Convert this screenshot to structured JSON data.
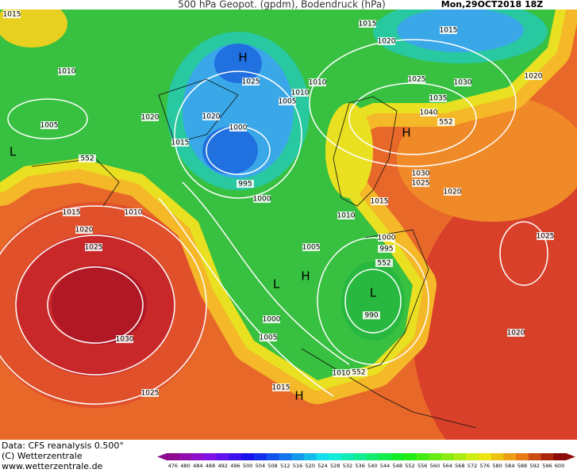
{
  "header": {
    "title": "500 hPa Geopot. (gpdm), Bodendruck (hPa)",
    "date": "Mon,29OCT2018 18Z"
  },
  "footer": {
    "lines": [
      "Data: CFS reanalysis 0.500°",
      "(C) Wetterzentrale",
      "www.wetterzentrale.de"
    ]
  },
  "colorbar": {
    "labels": [
      476,
      480,
      484,
      488,
      492,
      496,
      500,
      504,
      508,
      512,
      516,
      520,
      524,
      528,
      532,
      536,
      540,
      544,
      548,
      552,
      556,
      560,
      564,
      568,
      572,
      576,
      580,
      584,
      588,
      592,
      596,
      600
    ]
  },
  "map": {
    "labels": [
      "1015",
      "1015",
      "1020",
      "1015",
      "H",
      "1010",
      "1025",
      "1010",
      "1025",
      "1030",
      "1020",
      "1010",
      "1005",
      "1035",
      "1020",
      "1020",
      "1040",
      "552",
      "1005",
      "1000",
      "H",
      "1015",
      "L",
      "552",
      "1030",
      "1025",
      "995",
      "1020",
      "1000",
      "1015",
      "1015",
      "1010",
      "1010",
      "1020",
      "1000",
      "1025",
      "995",
      "1025",
      "1005",
      "552",
      "H",
      "L",
      "L",
      "990",
      "1000",
      "1030",
      "1005",
      "1020",
      "1010",
      "552",
      "1015",
      "1025",
      "H"
    ]
  }
}
